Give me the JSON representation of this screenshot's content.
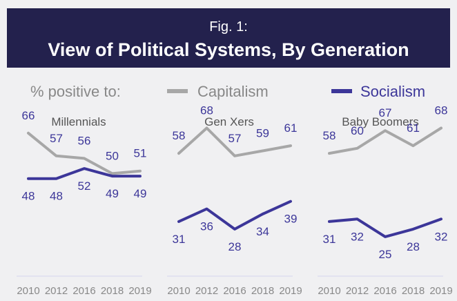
{
  "header": {
    "fig_number": "Fig. 1:",
    "title": "View of Political Systems, By Generation"
  },
  "legend": {
    "prefix": "% positive to:",
    "items": [
      {
        "label": "Capitalism",
        "color": "#a7a7a7"
      },
      {
        "label": "Socialism",
        "color": "#3c3699"
      }
    ]
  },
  "colors": {
    "header_bg": "#23214d",
    "capitalism": "#a7a7a7",
    "socialism": "#3c3699",
    "label_text": "#3c3699",
    "tick_text": "#888888",
    "axis_line": "#d9d9ef"
  },
  "chart_data": [
    {
      "type": "line",
      "title": "Millennials",
      "categories": [
        "2010",
        "2012",
        "2016",
        "2018",
        "2019"
      ],
      "series": [
        {
          "name": "Capitalism",
          "values": [
            66,
            57,
            56,
            50,
            51
          ]
        },
        {
          "name": "Socialism",
          "values": [
            48,
            48,
            52,
            49,
            49
          ]
        }
      ]
    },
    {
      "type": "line",
      "title": "Gen Xers",
      "categories": [
        "2010",
        "2012",
        "2016",
        "2018",
        "2019"
      ],
      "series": [
        {
          "name": "Capitalism",
          "values": [
            58,
            68,
            57,
            59,
            61
          ]
        },
        {
          "name": "Socialism",
          "values": [
            31,
            36,
            28,
            34,
            39
          ]
        }
      ]
    },
    {
      "type": "line",
      "title": "Baby Boomers",
      "categories": [
        "2010",
        "2012",
        "2016",
        "2018",
        "2019"
      ],
      "series": [
        {
          "name": "Capitalism",
          "values": [
            58,
            60,
            67,
            61,
            68
          ]
        },
        {
          "name": "Socialism",
          "values": [
            31,
            32,
            25,
            28,
            32
          ]
        }
      ]
    }
  ]
}
